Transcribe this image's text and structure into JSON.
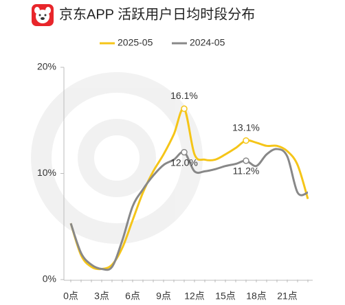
{
  "chart_data": {
    "type": "line",
    "title": "京东APP 活跃用户日均时段分布",
    "categories": [
      "0点",
      null,
      null,
      "3点",
      null,
      null,
      "6点",
      null,
      null,
      "9点",
      null,
      null,
      "12点",
      null,
      null,
      "15点",
      null,
      null,
      "18点",
      null,
      null,
      "21点",
      null,
      null
    ],
    "series": [
      {
        "name": "2025-05",
        "color": "#f5c518",
        "values": [
          5.3,
          2.3,
          1.2,
          1.0,
          1.4,
          3.0,
          5.6,
          8.2,
          10.2,
          11.8,
          13.7,
          16.1,
          11.8,
          11.3,
          11.3,
          11.8,
          12.4,
          13.1,
          12.9,
          12.6,
          12.6,
          12.1,
          10.8,
          7.6
        ],
        "value_labels": [
          null,
          null,
          null,
          null,
          null,
          null,
          null,
          null,
          null,
          null,
          null,
          "16.1%",
          null,
          null,
          null,
          null,
          null,
          "13.1%",
          null,
          null,
          null,
          null,
          null,
          null
        ]
      },
      {
        "name": "2024-05",
        "color": "#888888",
        "values": [
          5.3,
          2.5,
          1.4,
          1.0,
          1.2,
          3.7,
          6.9,
          8.5,
          9.8,
          10.8,
          11.3,
          12.0,
          10.2,
          10.2,
          10.4,
          10.7,
          10.9,
          11.2,
          10.7,
          11.8,
          12.3,
          11.6,
          8.2,
          8.2
        ],
        "value_labels": [
          null,
          null,
          null,
          null,
          null,
          null,
          null,
          null,
          null,
          null,
          null,
          "12.0%",
          null,
          null,
          null,
          null,
          null,
          "11.2%",
          null,
          null,
          null,
          null,
          null,
          null
        ]
      }
    ],
    "ylim": [
      0,
      20
    ],
    "yticks": [
      {
        "value": 0,
        "label": "0%"
      },
      {
        "value": 10,
        "label": "10%"
      },
      {
        "value": 20,
        "label": "20%"
      }
    ],
    "legend": "top"
  }
}
